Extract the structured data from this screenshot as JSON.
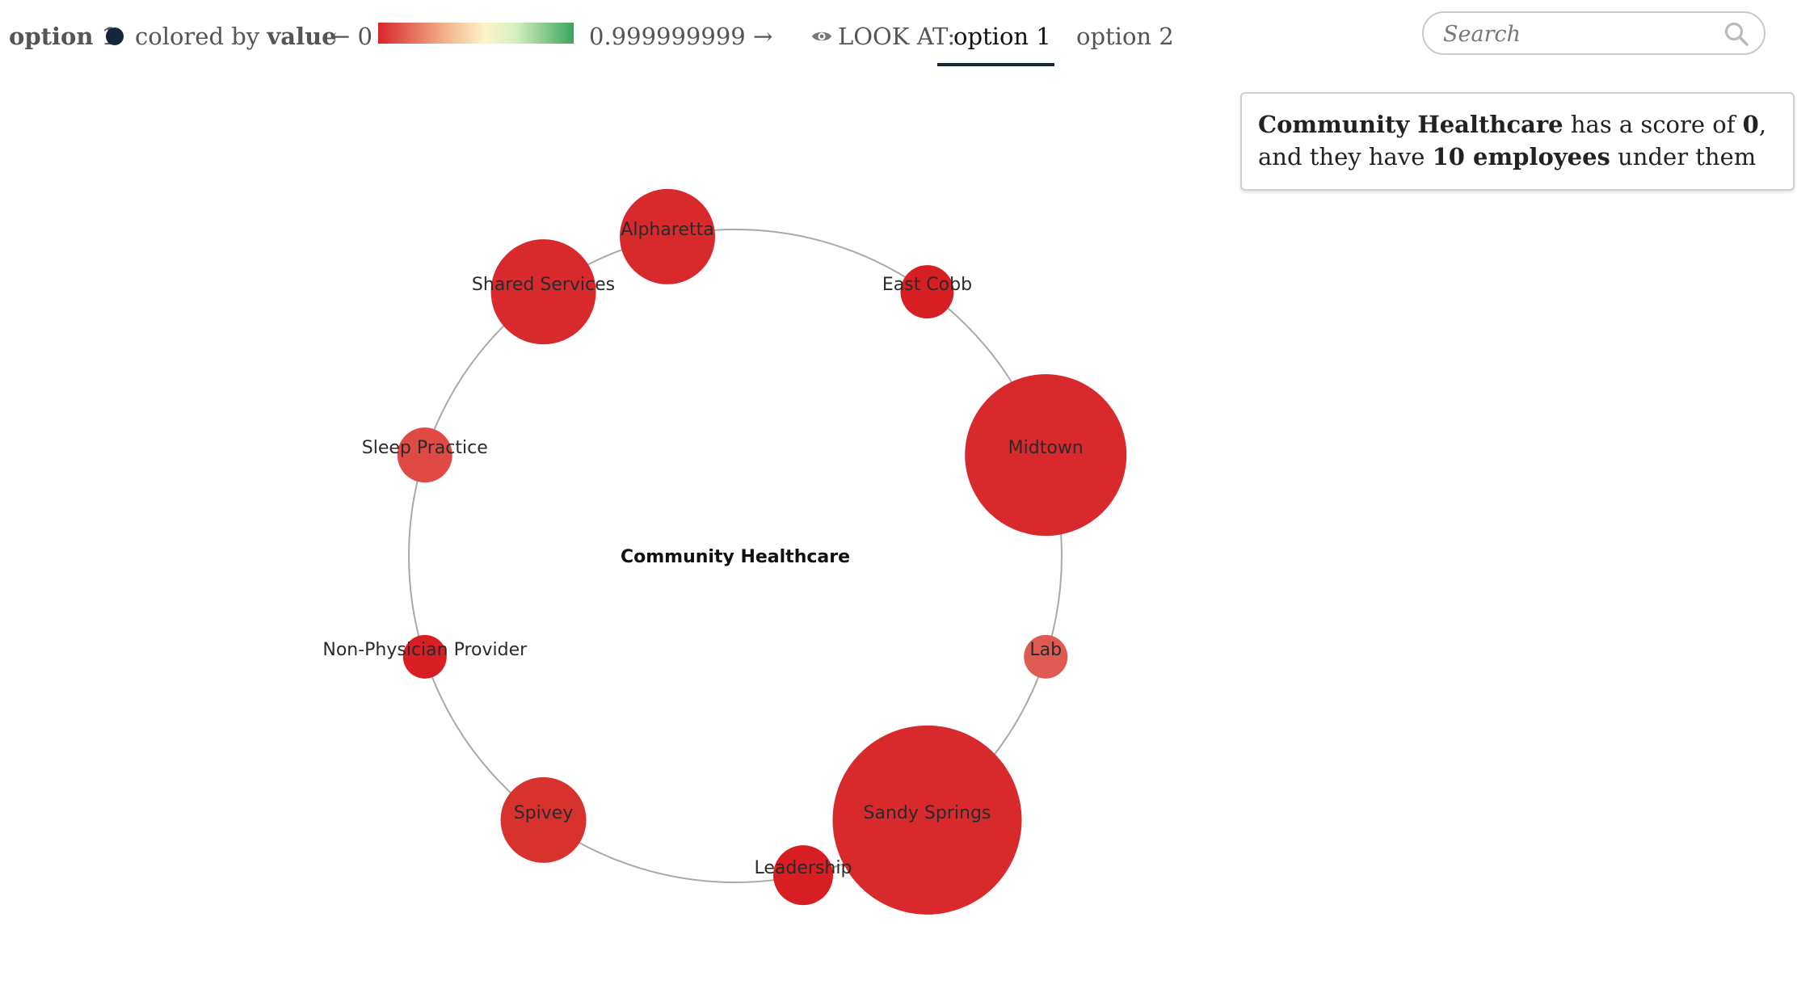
{
  "header": {
    "series_label": "option 1",
    "colored_by_prefix": "colored by",
    "colored_by_field": "value",
    "scale_min": "← 0",
    "scale_max": "0.999999999 →",
    "look_at_label": "LOOK AT:",
    "tabs": [
      {
        "label": "option 1",
        "active": true
      },
      {
        "label": "option 2",
        "active": false
      }
    ]
  },
  "search": {
    "placeholder": "Search"
  },
  "tooltip": {
    "name": "Community Healthcare",
    "text_1": " has a score of ",
    "score": "0",
    "text_2": ", and they have ",
    "employees": "10 employees",
    "text_3": " under them"
  },
  "graph": {
    "center_label": "Community Healthcare",
    "ring_color": "#a9a9a9",
    "nodes": [
      {
        "name": "Shared Services",
        "color": "#d8292d"
      },
      {
        "name": "Alpharetta",
        "color": "#d8292d"
      },
      {
        "name": "East Cobb",
        "color": "#d71e22"
      },
      {
        "name": "Midtown",
        "color": "#d8292d"
      },
      {
        "name": "Lab",
        "color": "#e05a54"
      },
      {
        "name": "Sandy Springs",
        "color": "#d8292d"
      },
      {
        "name": "Leadership",
        "color": "#d71e22"
      },
      {
        "name": "Spivey",
        "color": "#d8322e"
      },
      {
        "name": "Non-Physician Provider",
        "color": "#d71e22"
      },
      {
        "name": "Sleep Practice",
        "color": "#e04a45"
      }
    ]
  },
  "colors": {
    "low": "#d7262b",
    "high": "#3aa55c",
    "accent": "#14273a"
  }
}
